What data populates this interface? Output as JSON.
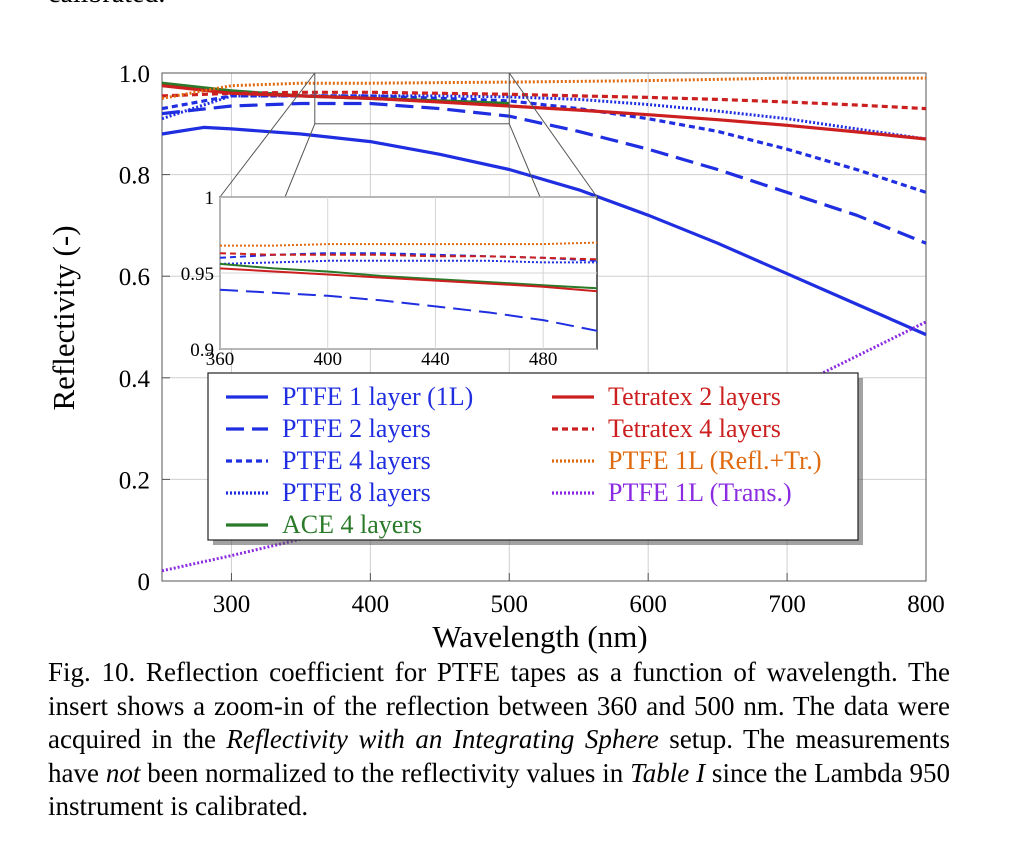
{
  "page": {
    "top_fragment": "calibrated.",
    "caption": {
      "p1": "Fig. 10.  Reflection coefficient for PTFE tapes as a function of wavelength. The insert shows a zoom-in of the reflection between 360 and 500 nm. The data were acquired in the ",
      "p2": "Reflectivity with an Integrating Sphere",
      "p3": " setup. The measurements have ",
      "p4": "not",
      "p5": " been normalized to the reflectivity values in ",
      "p6": "Table I",
      "p7": " since the Lambda 950 instrument is calibrated."
    }
  },
  "chart_data": [
    {
      "type": "line",
      "xlabel": "Wavelength (nm)",
      "ylabel": "Reflectivity (-)",
      "xlim": [
        250,
        800
      ],
      "ylim": [
        0,
        1.0
      ],
      "xticks": [
        300,
        400,
        500,
        600,
        700,
        800
      ],
      "yticks": [
        0,
        0.2,
        0.4,
        0.6,
        0.8,
        1.0
      ],
      "ytick_labels": [
        "0",
        "0.2",
        "0.4",
        "0.6",
        "0.8",
        "1.0"
      ],
      "grid": true,
      "legend_position": "lower-center",
      "series": [
        {
          "name": "PTFE 1 layer (1L)",
          "color": "#1f2ee0",
          "style": "solid",
          "x": [
            250,
            280,
            300,
            350,
            400,
            450,
            500,
            550,
            600,
            650,
            700,
            750,
            800
          ],
          "y": [
            0.88,
            0.893,
            0.89,
            0.88,
            0.865,
            0.84,
            0.81,
            0.77,
            0.72,
            0.665,
            0.605,
            0.545,
            0.485
          ]
        },
        {
          "name": "PTFE 2 layers",
          "color": "#1f2ee0",
          "style": "dash",
          "x": [
            250,
            300,
            350,
            400,
            450,
            500,
            550,
            600,
            650,
            700,
            750,
            800
          ],
          "y": [
            0.92,
            0.935,
            0.94,
            0.94,
            0.93,
            0.915,
            0.885,
            0.85,
            0.81,
            0.765,
            0.72,
            0.665
          ]
        },
        {
          "name": "PTFE 4 layers",
          "color": "#1f2ee0",
          "style": "shortdash",
          "x": [
            250,
            300,
            350,
            400,
            450,
            500,
            550,
            600,
            650,
            700,
            750,
            800
          ],
          "y": [
            0.93,
            0.955,
            0.955,
            0.955,
            0.95,
            0.945,
            0.93,
            0.91,
            0.885,
            0.85,
            0.81,
            0.765
          ]
        },
        {
          "name": "PTFE 8 layers",
          "color": "#1f2ee0",
          "style": "dot",
          "x": [
            250,
            300,
            350,
            400,
            450,
            500,
            550,
            600,
            650,
            700,
            750,
            800
          ],
          "y": [
            0.91,
            0.955,
            0.955,
            0.955,
            0.955,
            0.953,
            0.948,
            0.938,
            0.925,
            0.91,
            0.89,
            0.87
          ]
        },
        {
          "name": "ACE 4 layers",
          "color": "#2a7a2a",
          "style": "solid",
          "x": [
            250,
            300,
            350,
            400,
            450,
            500
          ],
          "y": [
            0.98,
            0.965,
            0.955,
            0.95,
            0.945,
            0.94
          ]
        },
        {
          "name": "Tetratex 2 layers",
          "color": "#cc1f1f",
          "style": "solid",
          "x": [
            250,
            300,
            350,
            400,
            450,
            500,
            550,
            600,
            650,
            700,
            750,
            800
          ],
          "y": [
            0.975,
            0.96,
            0.955,
            0.95,
            0.943,
            0.935,
            0.927,
            0.918,
            0.908,
            0.897,
            0.884,
            0.87
          ]
        },
        {
          "name": "Tetratex 4 layers",
          "color": "#cc1f1f",
          "style": "shortdash",
          "x": [
            250,
            300,
            350,
            400,
            450,
            500,
            550,
            600,
            650,
            700,
            750,
            800
          ],
          "y": [
            0.955,
            0.96,
            0.962,
            0.962,
            0.96,
            0.958,
            0.955,
            0.952,
            0.948,
            0.943,
            0.937,
            0.93
          ]
        },
        {
          "name": "PTFE 1L (Trans.)",
          "color": "#8a2be2",
          "style": "dot",
          "x": [
            250,
            300,
            400,
            500,
            600,
            700,
            800
          ],
          "y": [
            0.02,
            0.05,
            0.115,
            0.185,
            0.27,
            0.375,
            0.51
          ]
        },
        {
          "name": "PTFE 1L (Refl.+Tr.)",
          "color": "#e06a10",
          "style": "dot",
          "x": [
            250,
            300,
            350,
            400,
            500,
            600,
            700,
            800
          ],
          "y": [
            0.95,
            0.975,
            0.98,
            0.98,
            0.982,
            0.985,
            0.99,
            0.99
          ]
        }
      ]
    },
    {
      "type": "line",
      "title": "",
      "xlim": [
        360,
        500
      ],
      "ylim": [
        0.9,
        1.0
      ],
      "xticks": [
        360,
        400,
        440,
        480
      ],
      "yticks": [
        0.9,
        0.95,
        1.0
      ],
      "ytick_labels": [
        "0.9",
        "0.95",
        "1"
      ],
      "series": [
        {
          "name": "PTFE 2 layers",
          "color": "#1f2ee0",
          "style": "dash",
          "x": [
            360,
            380,
            400,
            420,
            440,
            460,
            480,
            500
          ],
          "y": [
            0.939,
            0.937,
            0.935,
            0.932,
            0.928,
            0.924,
            0.919,
            0.912
          ]
        },
        {
          "name": "PTFE 4 layers",
          "color": "#1f2ee0",
          "style": "shortdash",
          "x": [
            360,
            380,
            400,
            420,
            440,
            460,
            480,
            500
          ],
          "y": [
            0.96,
            0.962,
            0.963,
            0.963,
            0.962,
            0.961,
            0.96,
            0.958
          ]
        },
        {
          "name": "PTFE 8 layers",
          "color": "#1f2ee0",
          "style": "dot",
          "x": [
            360,
            380,
            400,
            420,
            440,
            460,
            480,
            500
          ],
          "y": [
            0.956,
            0.957,
            0.958,
            0.958,
            0.958,
            0.958,
            0.957,
            0.957
          ]
        },
        {
          "name": "ACE 4 layers",
          "color": "#2a7a2a",
          "style": "solid",
          "x": [
            360,
            380,
            400,
            420,
            440,
            460,
            480,
            500
          ],
          "y": [
            0.956,
            0.953,
            0.951,
            0.948,
            0.946,
            0.944,
            0.942,
            0.94
          ]
        },
        {
          "name": "Tetratex 2 layers",
          "color": "#cc1f1f",
          "style": "solid",
          "x": [
            360,
            380,
            400,
            420,
            440,
            460,
            480,
            500
          ],
          "y": [
            0.953,
            0.951,
            0.949,
            0.947,
            0.945,
            0.943,
            0.941,
            0.938
          ]
        },
        {
          "name": "Tetratex 4 layers",
          "color": "#cc1f1f",
          "style": "shortdash",
          "x": [
            360,
            380,
            400,
            420,
            440,
            460,
            480,
            500
          ],
          "y": [
            0.963,
            0.962,
            0.962,
            0.962,
            0.961,
            0.961,
            0.96,
            0.959
          ]
        },
        {
          "name": "PTFE 1L (Refl.+Tr.)",
          "color": "#e06a10",
          "style": "dot",
          "x": [
            360,
            380,
            400,
            420,
            440,
            460,
            480,
            500
          ],
          "y": [
            0.968,
            0.968,
            0.969,
            0.969,
            0.969,
            0.969,
            0.969,
            0.97
          ]
        }
      ]
    }
  ]
}
